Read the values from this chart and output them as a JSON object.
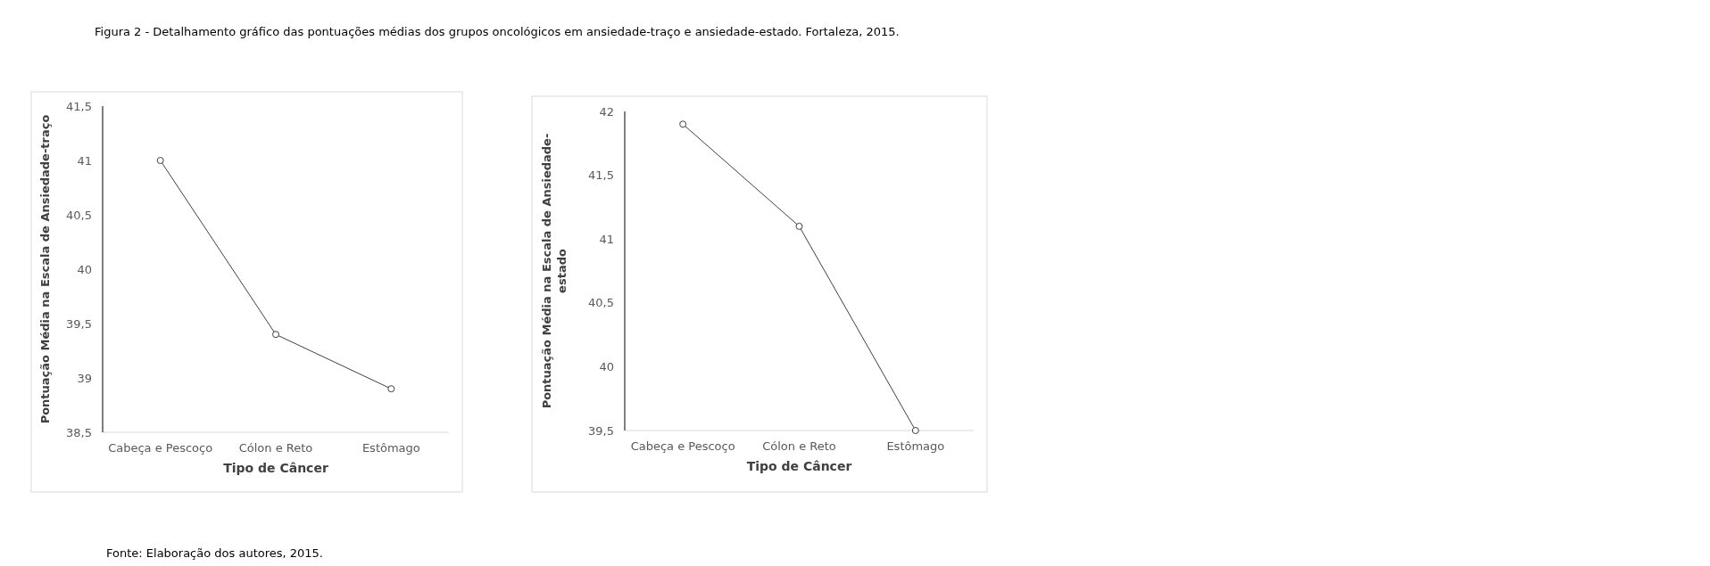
{
  "chart_data": [
    {
      "type": "line",
      "title": "Figura 2 - Detalhamento gráfico das pontuações médias dos grupos oncológicos em ansiedade-traço e ansiedade-estado. Fortaleza, 2015.",
      "xlabel": "Tipo de Câncer",
      "ylabel": "Pontuação Média na Escala de Ansiedade-traço",
      "categories": [
        "Cabeça e Pescoço",
        "Cólon e Reto",
        "Estômago"
      ],
      "series": [
        {
          "color": "#404040",
          "values": [
            41,
            39.4,
            38.9
          ]
        }
      ],
      "ylim": [
        38.5,
        41.5
      ],
      "yticks": [
        {
          "value": 38.5,
          "label": "38,5"
        },
        {
          "value": 39,
          "label": "39"
        },
        {
          "value": 39.5,
          "label": "39,5"
        },
        {
          "value": 40,
          "label": "40"
        },
        {
          "value": 40.5,
          "label": "40,5"
        },
        {
          "value": 41,
          "label": "41"
        },
        {
          "value": 41.5,
          "label": "41,5"
        }
      ],
      "marker": "circle"
    },
    {
      "type": "line",
      "xlabel": "Tipo de Câncer",
      "ylabel": "Pontuação Média na Escala de Ansiedade-estado",
      "categories": [
        "Cabeça e Pescoço",
        "Cólon e Reto",
        "Estômago"
      ],
      "series": [
        {
          "color": "#404040",
          "values": [
            41.9,
            41.1,
            39.5
          ]
        }
      ],
      "ylim": [
        39.5,
        42
      ],
      "yticks": [
        {
          "value": 39.5,
          "label": "39,5"
        },
        {
          "value": 40,
          "label": "40"
        },
        {
          "value": 40.5,
          "label": "40,5"
        },
        {
          "value": 41,
          "label": "41"
        },
        {
          "value": 41.5,
          "label": "41,5"
        },
        {
          "value": 42,
          "label": "42"
        }
      ],
      "marker": "circle",
      "annotations": [
        "Fonte: Elaboração dos autores, 2015."
      ]
    }
  ]
}
